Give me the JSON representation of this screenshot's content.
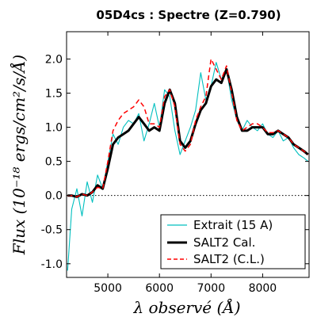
{
  "chart_data": {
    "type": "line",
    "title": "05D4cs : Spectre (Z=0.790)",
    "xlabel": "λ observé (Å)",
    "ylabel": "Flux (10⁻¹⁸ ergs/cm²/s/Å)",
    "xlim": [
      4200,
      8900
    ],
    "ylim": [
      -1.2,
      2.4
    ],
    "x_ticks": [
      5000,
      6000,
      7000,
      8000
    ],
    "x_tick_labels": [
      "5000",
      "6000",
      "7000",
      "8000"
    ],
    "y_ticks": [
      -1.0,
      -0.5,
      0.0,
      0.5,
      1.0,
      1.5,
      2.0
    ],
    "y_tick_labels": [
      "-1.0",
      "-0.5",
      "0.0",
      "0.5",
      "1.0",
      "1.5",
      "2.0"
    ],
    "grid": false,
    "zero_line": {
      "y": 0,
      "style": "dotted"
    },
    "legend_position": "lower-right",
    "series": [
      {
        "name": "Extrait (15 A)",
        "color": "#00bfbf",
        "style": "solid",
        "x": [
          4220,
          4300,
          4400,
          4500,
          4600,
          4700,
          4800,
          4900,
          5000,
          5100,
          5200,
          5300,
          5400,
          5500,
          5600,
          5700,
          5800,
          5900,
          6000,
          6100,
          6200,
          6300,
          6400,
          6500,
          6600,
          6700,
          6800,
          6900,
          7000,
          7100,
          7200,
          7300,
          7400,
          7500,
          7600,
          7700,
          7800,
          7900,
          8000,
          8100,
          8200,
          8300,
          8400,
          8500,
          8600,
          8700,
          8800,
          8880
        ],
        "y": [
          -1.1,
          -0.2,
          0.1,
          -0.3,
          0.2,
          -0.1,
          0.3,
          0.1,
          0.5,
          0.9,
          0.75,
          1.0,
          1.1,
          1.05,
          1.2,
          0.8,
          1.05,
          1.35,
          1.0,
          1.55,
          1.45,
          0.95,
          0.6,
          0.8,
          1.0,
          1.25,
          1.8,
          1.4,
          1.6,
          1.95,
          1.7,
          1.85,
          1.4,
          1.1,
          0.95,
          1.1,
          1.0,
          0.95,
          1.05,
          0.9,
          0.85,
          0.95,
          0.8,
          0.85,
          0.7,
          0.6,
          0.55,
          0.5
        ]
      },
      {
        "name": "SALT2 Cal.",
        "color": "#000000",
        "style": "solid",
        "x": [
          4220,
          4300,
          4400,
          4500,
          4600,
          4700,
          4800,
          4900,
          5000,
          5100,
          5200,
          5300,
          5400,
          5500,
          5600,
          5700,
          5800,
          5900,
          6000,
          6100,
          6200,
          6300,
          6400,
          6500,
          6600,
          6700,
          6800,
          6900,
          7000,
          7100,
          7200,
          7300,
          7400,
          7500,
          7600,
          7700,
          7800,
          7900,
          8000,
          8100,
          8200,
          8300,
          8400,
          8500,
          8600,
          8700,
          8800,
          8880
        ],
        "y": [
          0.0,
          0.0,
          -0.02,
          0.02,
          0.0,
          0.05,
          0.15,
          0.1,
          0.4,
          0.75,
          0.85,
          0.9,
          0.95,
          1.05,
          1.15,
          1.05,
          0.95,
          1.0,
          0.95,
          1.35,
          1.55,
          1.35,
          0.8,
          0.7,
          0.8,
          1.05,
          1.25,
          1.35,
          1.6,
          1.7,
          1.65,
          1.85,
          1.55,
          1.15,
          0.95,
          0.95,
          1.0,
          1.0,
          1.0,
          0.9,
          0.9,
          0.95,
          0.9,
          0.85,
          0.75,
          0.7,
          0.65,
          0.6
        ]
      },
      {
        "name": "SALT2 (C.L.)",
        "color": "#ff0000",
        "style": "dashed",
        "x": [
          4220,
          4300,
          4400,
          4500,
          4600,
          4700,
          4800,
          4900,
          5000,
          5100,
          5200,
          5300,
          5400,
          5500,
          5600,
          5700,
          5800,
          5900,
          6000,
          6100,
          6200,
          6300,
          6400,
          6500,
          6600,
          6700,
          6800,
          6900,
          7000,
          7100,
          7200,
          7300,
          7400,
          7500,
          7600,
          7700,
          7800,
          7900,
          8000,
          8100,
          8200,
          8300,
          8400,
          8500,
          8600,
          8700,
          8800,
          8880
        ],
        "y": [
          0.0,
          0.0,
          -0.02,
          0.02,
          0.0,
          0.05,
          0.12,
          0.1,
          0.5,
          0.95,
          1.1,
          1.2,
          1.25,
          1.3,
          1.4,
          1.3,
          1.05,
          1.05,
          1.0,
          1.45,
          1.55,
          1.3,
          0.75,
          0.65,
          0.75,
          1.1,
          1.3,
          1.45,
          2.0,
          1.85,
          1.7,
          1.9,
          1.5,
          1.1,
          0.95,
          1.0,
          1.05,
          1.05,
          1.0,
          0.92,
          0.92,
          0.95,
          0.9,
          0.85,
          0.75,
          0.7,
          0.65,
          0.6
        ]
      }
    ]
  }
}
